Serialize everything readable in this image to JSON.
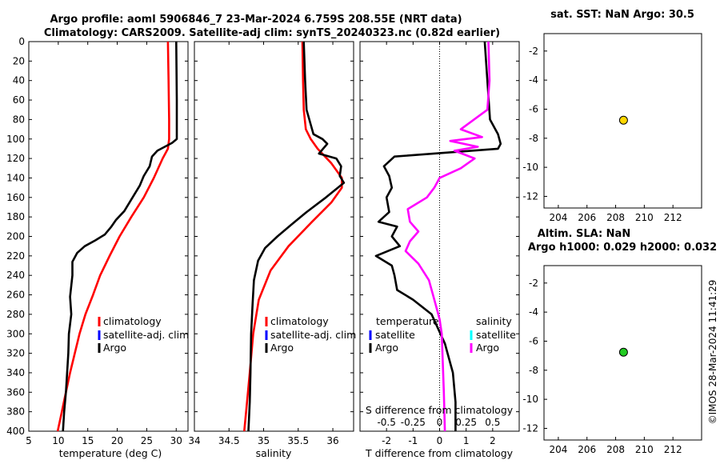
{
  "titles": {
    "line1": "Argo profile: aoml 5906846_7 23-Mar-2024 6.759S 208.55E (NRT data)",
    "line2": "Climatology: CARS2009. Satellite-adj clim: synTS_20240323.nc (0.82d earlier)",
    "sst": "sat. SST: NaN Argo: 30.5",
    "sla1": "Altim. SLA: NaN",
    "sla2": "Argo h1000: 0.029 h2000: 0.032",
    "credit": "©IMOS 28-Mar-2024 11:41:29"
  },
  "colors": {
    "climatology": "#ff0000",
    "satellite": "#0000ff",
    "argo": "#000000",
    "salinity_argo": "#ff00ff",
    "salinity_satellite": "#00ffff",
    "sst_marker": "#ffd700",
    "sla_marker": "#22cc22"
  },
  "chart_data": [
    {
      "type": "line",
      "id": "temperature",
      "xlabel": "temperature (deg C)",
      "ylabel": "",
      "xlim": [
        5,
        32
      ],
      "ylim": [
        400,
        0
      ],
      "xticks": [
        5,
        10,
        15,
        20,
        25,
        30
      ],
      "yticks": [
        0,
        20,
        40,
        60,
        80,
        100,
        120,
        140,
        160,
        180,
        200,
        220,
        240,
        260,
        280,
        300,
        320,
        340,
        360,
        380,
        400
      ],
      "legend": [
        "climatology",
        "satellite-adj. clim",
        "Argo"
      ],
      "series": [
        {
          "name": "climatology",
          "color": "#ff0000",
          "points": [
            [
              28.6,
              0
            ],
            [
              28.7,
              40
            ],
            [
              28.8,
              80
            ],
            [
              28.8,
              100
            ],
            [
              28.6,
              110
            ],
            [
              27.7,
              120
            ],
            [
              26.2,
              140
            ],
            [
              24.5,
              160
            ],
            [
              22.4,
              180
            ],
            [
              20.4,
              200
            ],
            [
              18.7,
              220
            ],
            [
              17.1,
              240
            ],
            [
              15.9,
              260
            ],
            [
              14.6,
              280
            ],
            [
              13.6,
              300
            ],
            [
              12.8,
              320
            ],
            [
              12.0,
              340
            ],
            [
              11.3,
              360
            ],
            [
              10.6,
              380
            ],
            [
              9.9,
              400
            ]
          ]
        },
        {
          "name": "Argo",
          "color": "#000000",
          "points": [
            [
              30.0,
              0
            ],
            [
              30.1,
              60
            ],
            [
              30.1,
              100
            ],
            [
              29.3,
              104
            ],
            [
              26.8,
              112
            ],
            [
              25.9,
              118
            ],
            [
              25.5,
              128
            ],
            [
              24.5,
              138
            ],
            [
              23.8,
              148
            ],
            [
              22.6,
              160
            ],
            [
              21.2,
              174
            ],
            [
              19.8,
              183
            ],
            [
              19.0,
              190
            ],
            [
              17.9,
              198
            ],
            [
              16.3,
              204
            ],
            [
              14.5,
              210
            ],
            [
              13.2,
              217
            ],
            [
              12.4,
              226
            ],
            [
              12.4,
              240
            ],
            [
              12.0,
              262
            ],
            [
              12.2,
              280
            ],
            [
              11.8,
              300
            ],
            [
              11.7,
              320
            ],
            [
              11.5,
              340
            ],
            [
              11.3,
              360
            ],
            [
              11.0,
              380
            ],
            [
              10.8,
              400
            ]
          ]
        }
      ]
    },
    {
      "type": "line",
      "id": "salinity",
      "xlabel": "salinity",
      "ylabel": "",
      "xlim": [
        34,
        36.3
      ],
      "ylim": [
        400,
        0
      ],
      "xticks": [
        34,
        34.5,
        35,
        35.5,
        36
      ],
      "legend": [
        "climatology",
        "satellite-adj. clim",
        "Argo"
      ],
      "series": [
        {
          "name": "climatology",
          "color": "#ff0000",
          "points": [
            [
              35.56,
              0
            ],
            [
              35.57,
              40
            ],
            [
              35.58,
              70
            ],
            [
              35.61,
              90
            ],
            [
              35.68,
              100
            ],
            [
              35.78,
              110
            ],
            [
              35.98,
              125
            ],
            [
              36.13,
              140
            ],
            [
              36.13,
              150
            ],
            [
              35.98,
              165
            ],
            [
              35.7,
              185
            ],
            [
              35.36,
              210
            ],
            [
              35.1,
              235
            ],
            [
              34.93,
              265
            ],
            [
              34.85,
              300
            ],
            [
              34.8,
              340
            ],
            [
              34.76,
              370
            ],
            [
              34.72,
              400
            ]
          ]
        },
        {
          "name": "Argo",
          "color": "#000000",
          "points": [
            [
              35.58,
              0
            ],
            [
              35.6,
              40
            ],
            [
              35.62,
              70
            ],
            [
              35.72,
              95
            ],
            [
              35.85,
              100
            ],
            [
              35.92,
              105
            ],
            [
              35.8,
              115
            ],
            [
              36.05,
              120
            ],
            [
              36.12,
              128
            ],
            [
              36.1,
              138
            ],
            [
              36.16,
              145
            ],
            [
              35.9,
              160
            ],
            [
              35.62,
              175
            ],
            [
              35.4,
              188
            ],
            [
              35.2,
              200
            ],
            [
              35.02,
              212
            ],
            [
              34.92,
              225
            ],
            [
              34.86,
              245
            ],
            [
              34.84,
              270
            ],
            [
              34.82,
              300
            ],
            [
              34.81,
              340
            ],
            [
              34.8,
              370
            ],
            [
              34.78,
              400
            ]
          ]
        }
      ]
    },
    {
      "type": "line",
      "id": "difference",
      "xlabel": "T difference from climatology",
      "xlabel_top": "S difference from climatology",
      "xlim": [
        -3,
        3
      ],
      "ylim": [
        400,
        0
      ],
      "xticks": [
        -2,
        -1,
        0,
        1,
        2
      ],
      "s_xticks": [
        -0.5,
        -0.25,
        0,
        0.25,
        0.5
      ],
      "s_tick_labels": [
        "-0.5",
        "-0.25",
        "0",
        "0.25",
        "0.5"
      ],
      "legend_temperature_title": "temperature",
      "legend_salinity_title": "salinity",
      "legend": [
        "satellite",
        "Argo"
      ],
      "series": [
        {
          "name": "T difference (Argo)",
          "color": "#000000",
          "points": [
            [
              1.7,
              0
            ],
            [
              1.8,
              40
            ],
            [
              1.9,
              80
            ],
            [
              2.2,
              95
            ],
            [
              2.3,
              105
            ],
            [
              2.2,
              110
            ],
            [
              -1.7,
              118
            ],
            [
              -2.1,
              128
            ],
            [
              -1.9,
              138
            ],
            [
              -1.8,
              150
            ],
            [
              -2.0,
              160
            ],
            [
              -1.9,
              175
            ],
            [
              -2.3,
              185
            ],
            [
              -1.6,
              190
            ],
            [
              -1.8,
              200
            ],
            [
              -1.5,
              210
            ],
            [
              -2.4,
              220
            ],
            [
              -1.8,
              230
            ],
            [
              -1.7,
              240
            ],
            [
              -1.6,
              255
            ],
            [
              -1.0,
              265
            ],
            [
              -0.3,
              280
            ],
            [
              0.2,
              310
            ],
            [
              0.5,
              340
            ],
            [
              0.6,
              370
            ],
            [
              0.6,
              400
            ]
          ]
        },
        {
          "name": "S difference (Argo)",
          "color": "#ff00ff",
          "points": [
            [
              0.46,
              0
            ],
            [
              0.47,
              40
            ],
            [
              0.45,
              70
            ],
            [
              0.2,
              90
            ],
            [
              0.4,
              98
            ],
            [
              0.1,
              102
            ],
            [
              0.36,
              108
            ],
            [
              0.14,
              112
            ],
            [
              0.33,
              120
            ],
            [
              0.2,
              130
            ],
            [
              0.0,
              140
            ],
            [
              -0.05,
              150
            ],
            [
              -0.12,
              160
            ],
            [
              -0.3,
              172
            ],
            [
              -0.28,
              185
            ],
            [
              -0.2,
              195
            ],
            [
              -0.28,
              205
            ],
            [
              -0.32,
              215
            ],
            [
              -0.2,
              228
            ],
            [
              -0.1,
              245
            ],
            [
              -0.05,
              265
            ],
            [
              0.0,
              285
            ],
            [
              0.02,
              300
            ],
            [
              0.03,
              330
            ],
            [
              0.04,
              360
            ],
            [
              0.05,
              400
            ]
          ]
        }
      ]
    },
    {
      "type": "scatter",
      "id": "sst",
      "title": "sat. SST: NaN Argo: 30.5",
      "xlim": [
        203,
        214
      ],
      "ylim": [
        -12.8,
        -0.8
      ],
      "xticks": [
        204,
        206,
        208,
        210,
        212
      ],
      "yticks": [
        -2,
        -4,
        -6,
        -8,
        -10,
        -12
      ],
      "points": [
        [
          208.55,
          -6.759
        ]
      ]
    },
    {
      "type": "scatter",
      "id": "sla",
      "title": "Altim. SLA: NaN / Argo h1000: 0.029 h2000: 0.032",
      "xlim": [
        203,
        214
      ],
      "ylim": [
        -12.8,
        -0.8
      ],
      "xticks": [
        204,
        206,
        208,
        210,
        212
      ],
      "yticks": [
        -2,
        -4,
        -6,
        -8,
        -10,
        -12
      ],
      "points": [
        [
          208.55,
          -6.759
        ]
      ]
    }
  ],
  "legend_labels": {
    "climatology": "climatology",
    "satellite_adj": "satellite-adj. clim",
    "argo": "Argo",
    "satellite": "satellite"
  }
}
